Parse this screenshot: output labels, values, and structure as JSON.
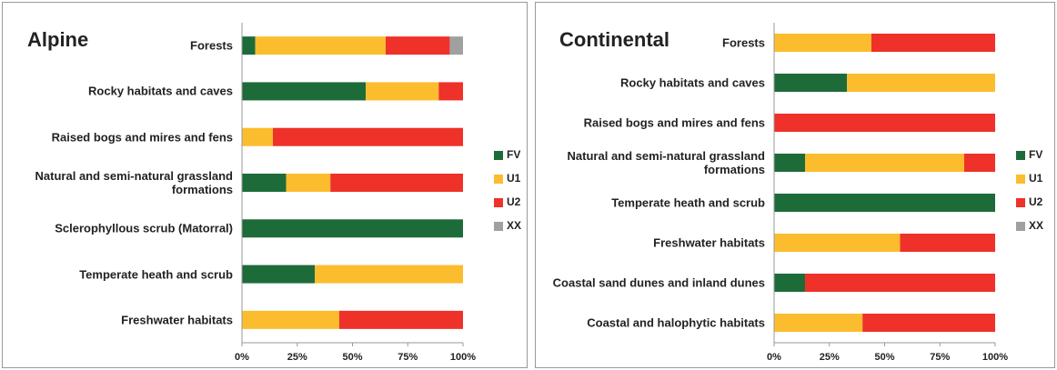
{
  "chart_data": [
    {
      "type": "bar",
      "orientation": "horizontal",
      "stacked": true,
      "title": "Alpine",
      "categories": [
        "Forests",
        "Rocky habitats and caves",
        "Raised bogs and mires and fens",
        "Natural and semi-natural grassland formations",
        "Sclerophyllous scrub (Matorral)",
        "Temperate heath and scrub",
        "Freshwater habitats"
      ],
      "series": [
        {
          "name": "FV",
          "color": "#1e6b3a",
          "values": [
            6,
            56,
            0,
            20,
            100,
            33,
            0
          ]
        },
        {
          "name": "U1",
          "color": "#fbbd2d",
          "values": [
            59,
            33,
            14,
            20,
            0,
            67,
            44
          ]
        },
        {
          "name": "U2",
          "color": "#ee3129",
          "values": [
            29,
            11,
            86,
            60,
            0,
            0,
            56
          ]
        },
        {
          "name": "XX",
          "color": "#a0a0a0",
          "values": [
            6,
            0,
            0,
            0,
            0,
            0,
            0
          ]
        }
      ],
      "xlim": [
        0,
        100
      ],
      "xticks": [
        {
          "value": 0,
          "label": "0%"
        },
        {
          "value": 25,
          "label": "25%"
        },
        {
          "value": 50,
          "label": "50%"
        },
        {
          "value": 75,
          "label": "75%"
        },
        {
          "value": 100,
          "label": "100%"
        }
      ],
      "legend": "right"
    },
    {
      "type": "bar",
      "orientation": "horizontal",
      "stacked": true,
      "title": "Continental",
      "categories": [
        "Forests",
        "Rocky habitats and caves",
        "Raised bogs and mires and fens",
        "Natural and semi-natural grassland formations",
        "Temperate heath and scrub",
        "Freshwater habitats",
        "Coastal sand dunes and inland dunes",
        "Coastal and halophytic habitats"
      ],
      "series": [
        {
          "name": "FV",
          "color": "#1e6b3a",
          "values": [
            0,
            33,
            0,
            14,
            100,
            0,
            14,
            0
          ]
        },
        {
          "name": "U1",
          "color": "#fbbd2d",
          "values": [
            44,
            67,
            0,
            72,
            0,
            57,
            0,
            40
          ]
        },
        {
          "name": "U2",
          "color": "#ee3129",
          "values": [
            56,
            0,
            100,
            14,
            0,
            43,
            86,
            60
          ]
        },
        {
          "name": "XX",
          "color": "#a0a0a0",
          "values": [
            0,
            0,
            0,
            0,
            0,
            0,
            0,
            0
          ]
        }
      ],
      "xlim": [
        0,
        100
      ],
      "xticks": [
        {
          "value": 0,
          "label": "0%"
        },
        {
          "value": 25,
          "label": "25%"
        },
        {
          "value": 50,
          "label": "50%"
        },
        {
          "value": 75,
          "label": "75%"
        },
        {
          "value": 100,
          "label": "100%"
        }
      ],
      "legend": "right"
    }
  ]
}
